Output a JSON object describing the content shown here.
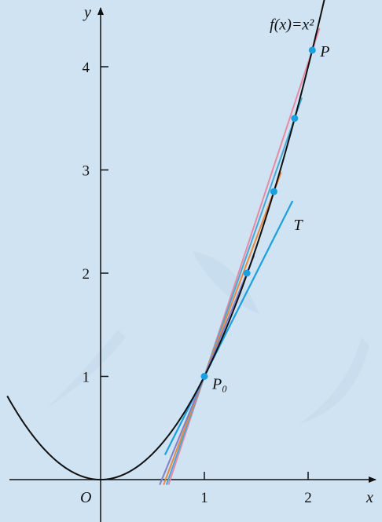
{
  "chart_data": {
    "type": "line",
    "xlabel": "x",
    "ylabel": "y",
    "origin_label": "O",
    "xlim": [
      -0.9,
      2.65
    ],
    "ylim": [
      -0.25,
      4.65
    ],
    "x_ticks": [
      {
        "value": 1,
        "label": "1"
      },
      {
        "value": 2,
        "label": "2"
      }
    ],
    "y_ticks": [
      {
        "value": 1,
        "label": "1"
      },
      {
        "value": 2,
        "label": "2"
      },
      {
        "value": 3,
        "label": "3"
      },
      {
        "value": 4,
        "label": "4"
      }
    ],
    "curve": {
      "label": "f(x)=x²",
      "label_at": [
        1.63,
        4.36
      ],
      "x_range": [
        -0.9,
        2.2
      ],
      "color": "#111111"
    },
    "base_point": {
      "x": 1,
      "y": 1,
      "label": "P₀"
    },
    "secants": [
      {
        "px": 2.04,
        "py": 4.16,
        "color": "#e88aa6",
        "label": "P"
      },
      {
        "px": 1.87,
        "py": 3.5,
        "color": "#49a7d6",
        "label": ""
      },
      {
        "px": 1.67,
        "py": 2.79,
        "color": "#e98a3e",
        "label": ""
      },
      {
        "px": 1.41,
        "py": 2.0,
        "color": "#7f7fcc",
        "label": ""
      }
    ],
    "tangent": {
      "label": "T",
      "color": "#1aa0df",
      "slope": 2
    },
    "point_color": "#1aa0df",
    "grid": false
  }
}
